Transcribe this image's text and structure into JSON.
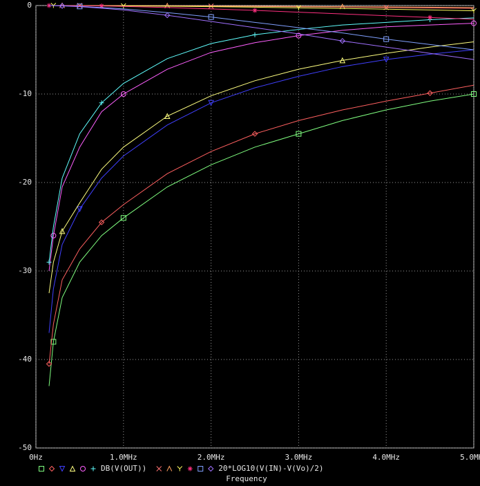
{
  "chart_data": {
    "type": "line",
    "xlabel": "Frequency",
    "x": [
      0.15,
      0.2,
      0.3,
      0.5,
      0.75,
      1.0,
      1.5,
      2.0,
      2.5,
      3.0,
      3.5,
      4.0,
      4.5,
      5.0
    ],
    "xlim": [
      0,
      5
    ],
    "xticks": [
      {
        "value": 0,
        "label": "0Hz"
      },
      {
        "value": 1,
        "label": "1.0MHz"
      },
      {
        "value": 2,
        "label": "2.0MHz"
      },
      {
        "value": 3,
        "label": "3.0MHz"
      },
      {
        "value": 4,
        "label": "4.0MHz"
      },
      {
        "value": 5,
        "label": "5.0MHz"
      }
    ],
    "ylim": [
      -50,
      0
    ],
    "yticks": [
      0,
      -10,
      -20,
      -30,
      -40,
      -50
    ],
    "grid": true,
    "series": [
      {
        "color": "#80ff80",
        "marker": "square",
        "values": [
          -43,
          -38,
          -33,
          -29,
          -26,
          -24,
          -20.5,
          -18,
          -16,
          -14.5,
          -13,
          -11.8,
          -10.8,
          -10.0
        ]
      },
      {
        "color": "#ff6060",
        "marker": "diamond",
        "values": [
          -40.5,
          -36,
          -31,
          -27.5,
          -24.5,
          -22.5,
          -19,
          -16.5,
          -14.5,
          -13,
          -11.8,
          -10.8,
          -9.9,
          -9.0
        ]
      },
      {
        "color": "#4040ff",
        "marker": "tri-down",
        "values": [
          -37,
          -32,
          -27,
          -23,
          -19.5,
          -17,
          -13.5,
          -11,
          -9.3,
          -8,
          -6.9,
          -6.1,
          -5.5,
          -5.0
        ]
      },
      {
        "color": "#ffff80",
        "marker": "tri-up",
        "values": [
          -32.5,
          -29,
          -25.5,
          -22.3,
          -18.5,
          -16,
          -12.5,
          -10.2,
          -8.5,
          -7.2,
          -6.2,
          -5.4,
          -4.7,
          -4.1
        ]
      },
      {
        "color": "#ff60ff",
        "marker": "circle",
        "values": [
          -30,
          -26,
          -20.5,
          -16,
          -12,
          -10,
          -7.2,
          -5.3,
          -4.2,
          -3.4,
          -2.8,
          -2.4,
          -2.2,
          -2.0
        ]
      },
      {
        "color": "#60ffff",
        "marker": "plus",
        "values": [
          -29,
          -25,
          -19.5,
          -14.5,
          -11,
          -8.8,
          -6,
          -4.3,
          -3.3,
          -2.7,
          -2.2,
          -1.9,
          -1.6,
          -1.4
        ]
      },
      {
        "color": "#ff7070",
        "marker": "cross",
        "values": [
          0,
          0,
          0,
          0,
          -0.01,
          -0.02,
          -0.04,
          -0.07,
          -0.1,
          -0.14,
          -0.18,
          -0.22,
          -0.27,
          -0.32
        ]
      },
      {
        "color": "#ffa060",
        "marker": "lambda",
        "values": [
          0,
          0,
          0,
          0,
          0,
          -0.01,
          -0.03,
          -0.05,
          -0.07,
          -0.1,
          -0.13,
          -0.16,
          -0.19,
          -0.22
        ]
      },
      {
        "color": "#ffff60",
        "marker": "y",
        "values": [
          0,
          0,
          0,
          -0.01,
          -0.02,
          -0.04,
          -0.08,
          -0.13,
          -0.19,
          -0.26,
          -0.33,
          -0.41,
          -0.5,
          -0.6
        ]
      },
      {
        "color": "#ff3080",
        "marker": "star",
        "values": [
          0,
          0,
          -0.01,
          -0.02,
          -0.05,
          -0.1,
          -0.22,
          -0.38,
          -0.55,
          -0.75,
          -0.95,
          -1.15,
          -1.35,
          -1.55
        ]
      },
      {
        "color": "#80a0ff",
        "marker": "square",
        "values": [
          0,
          -0.01,
          -0.03,
          -0.1,
          -0.22,
          -0.38,
          -0.8,
          -1.3,
          -1.9,
          -2.5,
          -3.1,
          -3.8,
          -4.4,
          -5.0
        ]
      },
      {
        "color": "#a070ff",
        "marker": "diamond",
        "values": [
          0,
          -0.01,
          -0.04,
          -0.13,
          -0.3,
          -0.5,
          -1.1,
          -1.8,
          -2.5,
          -3.2,
          -4.0,
          -4.7,
          -5.4,
          -6.1
        ]
      }
    ],
    "legend": [
      {
        "label": "DB(V(OUT))",
        "series": [
          0,
          1,
          2,
          3,
          4,
          5
        ]
      },
      {
        "label": "20*LOG10(V(IN)-V(Vo)/2)",
        "series": [
          6,
          7,
          8,
          9,
          10,
          11
        ]
      }
    ]
  }
}
